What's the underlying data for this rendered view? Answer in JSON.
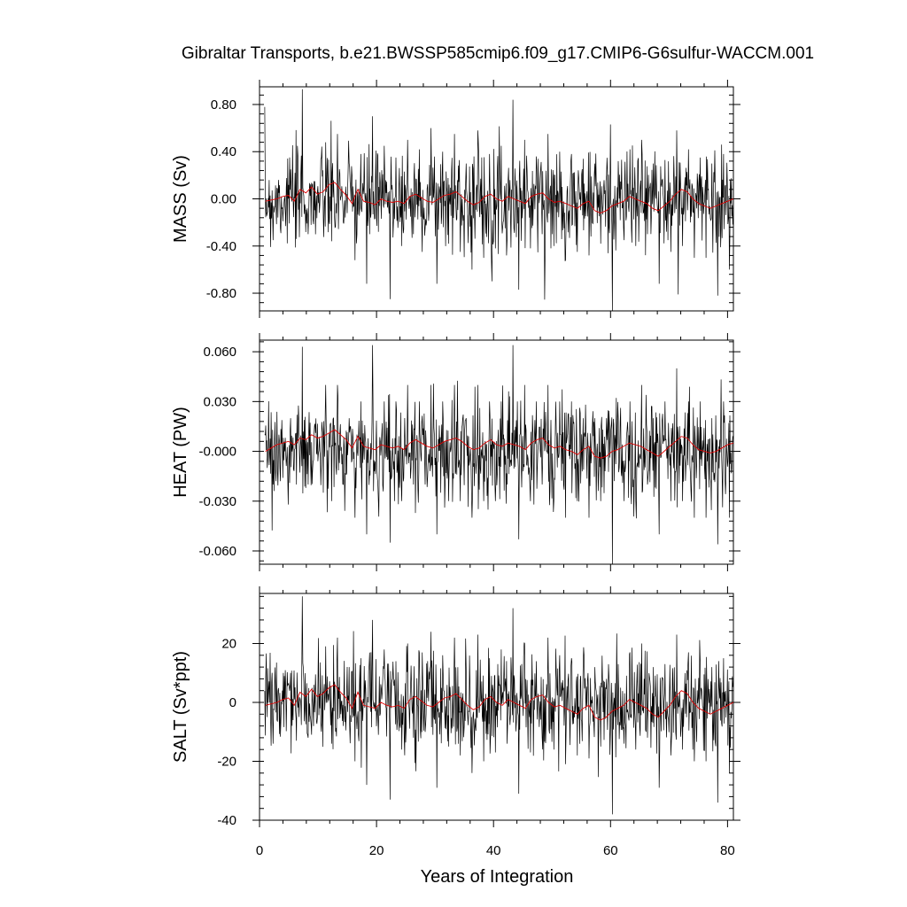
{
  "chart_data": {
    "type": "line",
    "title": "Gibraltar Transports, b.e21.BWSSP585cmip6.f09_g17.CMIP6-G6sulfur-WACCM.001",
    "xlabel": "Years of Integration",
    "xlim": [
      0,
      81
    ],
    "x_ticks": [
      0,
      20,
      40,
      60,
      80
    ],
    "x_tick_labels": [
      "0",
      "20",
      "40",
      "60",
      "80"
    ],
    "grid": false,
    "panels": [
      {
        "ylabel": "MASS (Sv)",
        "ylim": [
          -0.95,
          0.95
        ],
        "y_ticks": [
          -0.8,
          -0.4,
          0.0,
          0.4,
          0.8
        ],
        "y_tick_labels": [
          "-0.80",
          "-0.40",
          "0.00",
          "0.40",
          "0.80"
        ],
        "raw_std": 0.2,
        "raw_max": 0.93,
        "raw_min": -0.95,
        "series": [
          {
            "name": "",
            "color": "#000000",
            "values": [
              -0.12,
              -0.35,
              0.05,
              0.02,
              0.25,
              -0.34,
              0.93,
              -0.3,
              0.15,
              -0.05,
              0.48,
              -0.36,
              0.55,
              -0.2,
              0.3,
              -0.52,
              0.38,
              -0.72,
              0.7,
              -0.28,
              0.45,
              -0.85,
              0.35,
              -0.4,
              0.5,
              -0.3,
              0.42,
              -0.25,
              0.6,
              -0.72,
              0.4,
              -0.38,
              0.55,
              -0.45,
              0.3,
              -0.6,
              0.58,
              -0.5,
              0.38,
              -0.42,
              0.45,
              -0.35,
              0.84,
              -0.77,
              0.5,
              -0.42,
              0.36,
              -0.3,
              0.55,
              -0.4,
              0.4,
              -0.52,
              0.38,
              -0.45,
              0.34,
              -0.48,
              0.3,
              -0.38,
              0.2,
              -0.95,
              0.32,
              -0.35,
              0.42,
              -0.4,
              0.5,
              -0.3,
              0.3,
              -0.72,
              0.33,
              -0.45,
              0.58,
              -0.4,
              0.42,
              -0.5,
              0.35,
              -0.5,
              0.3,
              -0.82,
              0.38,
              -0.6,
              0.4,
              -0.15
            ]
          },
          {
            "name": "",
            "color": "#e00000",
            "values": [
              -0.02,
              -0.01,
              0.0,
              0.02,
              0.03,
              -0.02,
              0.08,
              0.05,
              0.1,
              0.04,
              0.06,
              0.12,
              0.14,
              0.08,
              0.03,
              -0.04,
              0.08,
              -0.02,
              -0.03,
              -0.05,
              0.0,
              -0.02,
              -0.03,
              -0.02,
              -0.04,
              0.02,
              0.04,
              0.01,
              -0.02,
              -0.03,
              0.0,
              0.03,
              0.04,
              0.06,
              0.02,
              -0.02,
              -0.05,
              -0.03,
              0.02,
              0.04,
              0.0,
              -0.02,
              0.02,
              0.0,
              -0.02,
              -0.04,
              0.02,
              0.04,
              0.05,
              0.0,
              -0.03,
              -0.02,
              -0.04,
              -0.06,
              -0.08,
              -0.04,
              -0.02,
              -0.1,
              -0.12,
              -0.1,
              -0.06,
              -0.04,
              -0.02,
              0.02,
              0.0,
              -0.02,
              -0.04,
              -0.08,
              -0.1,
              -0.06,
              -0.02,
              0.04,
              0.08,
              0.06,
              0.0,
              -0.04,
              -0.06,
              -0.08,
              -0.06,
              -0.04,
              -0.02,
              0.0
            ]
          }
        ]
      },
      {
        "ylabel": "HEAT (PW)",
        "ylim": [
          -0.068,
          0.067
        ],
        "y_ticks": [
          -0.06,
          -0.03,
          0.0,
          0.03,
          0.06
        ],
        "y_tick_labels": [
          "-0.060",
          "-0.030",
          "-0.000",
          "0.030",
          "0.060"
        ],
        "raw_std": 0.015,
        "raw_max": 0.064,
        "raw_min": -0.068,
        "series": [
          {
            "name": "",
            "color": "#000000",
            "values": [
              -0.01,
              -0.02,
              0.01,
              0.0,
              0.02,
              -0.02,
              0.063,
              -0.02,
              0.01,
              0.0,
              0.04,
              -0.03,
              0.04,
              -0.02,
              0.02,
              -0.04,
              0.03,
              -0.05,
              0.064,
              -0.03,
              0.03,
              -0.055,
              0.03,
              -0.03,
              0.04,
              -0.02,
              0.03,
              -0.02,
              0.04,
              -0.05,
              0.03,
              -0.03,
              0.04,
              -0.03,
              0.02,
              -0.04,
              0.04,
              -0.03,
              0.03,
              -0.03,
              0.03,
              -0.02,
              0.064,
              -0.053,
              0.04,
              -0.03,
              0.03,
              -0.02,
              0.04,
              -0.03,
              0.03,
              -0.04,
              0.03,
              -0.03,
              0.02,
              -0.04,
              0.02,
              -0.03,
              0.02,
              -0.068,
              0.02,
              -0.03,
              0.03,
              -0.03,
              0.04,
              -0.02,
              0.02,
              -0.05,
              0.03,
              -0.03,
              0.05,
              -0.03,
              0.03,
              -0.04,
              0.03,
              -0.04,
              0.02,
              -0.056,
              0.03,
              -0.04,
              0.03,
              -0.01
            ]
          },
          {
            "name": "",
            "color": "#e00000",
            "values": [
              0.0,
              0.002,
              0.004,
              0.005,
              0.006,
              0.004,
              0.008,
              0.007,
              0.01,
              0.008,
              0.009,
              0.011,
              0.013,
              0.01,
              0.007,
              0.002,
              0.009,
              0.003,
              0.002,
              0.001,
              0.004,
              0.003,
              0.002,
              0.003,
              0.001,
              0.005,
              0.007,
              0.005,
              0.003,
              0.002,
              0.004,
              0.006,
              0.007,
              0.008,
              0.006,
              0.003,
              0.001,
              0.002,
              0.005,
              0.007,
              0.004,
              0.003,
              0.005,
              0.004,
              0.003,
              0.001,
              0.005,
              0.007,
              0.008,
              0.004,
              0.002,
              0.003,
              0.001,
              0.0,
              -0.002,
              0.001,
              0.003,
              -0.003,
              -0.004,
              -0.003,
              0.0,
              0.001,
              0.003,
              0.005,
              0.004,
              0.003,
              0.001,
              -0.001,
              -0.003,
              0.0,
              0.003,
              0.006,
              0.009,
              0.008,
              0.004,
              0.001,
              0.0,
              -0.001,
              0.0,
              0.002,
              0.004,
              0.005
            ]
          }
        ]
      },
      {
        "ylabel": "SALT (Sv*ppt)",
        "ylim": [
          -40,
          37
        ],
        "y_ticks": [
          -40,
          -20,
          0,
          20
        ],
        "y_tick_labels": [
          "-40",
          "-20",
          "0",
          "20"
        ],
        "raw_std": 8,
        "raw_max": 36,
        "raw_min": -38,
        "series": [
          {
            "name": "",
            "color": "#000000",
            "values": [
              -5,
              -14,
              2,
              1,
              10,
              -13,
              36,
              -12,
              6,
              -2,
              19,
              -14,
              22,
              -8,
              12,
              -20,
              15,
              -28,
              28,
              -11,
              18,
              -33,
              14,
              -16,
              20,
              -12,
              17,
              -10,
              24,
              -29,
              16,
              -15,
              22,
              -18,
              12,
              -24,
              23,
              -20,
              15,
              -17,
              18,
              -14,
              32,
              -31,
              20,
              -17,
              14,
              -12,
              22,
              -16,
              16,
              -21,
              15,
              -18,
              13,
              -19,
              12,
              -15,
              8,
              -38,
              13,
              -14,
              17,
              -16,
              20,
              -12,
              12,
              -29,
              13,
              -18,
              23,
              -16,
              17,
              -20,
              14,
              -20,
              12,
              -34,
              15,
              -24,
              16,
              -6
            ]
          },
          {
            "name": "",
            "color": "#e00000",
            "values": [
              -1,
              -0.5,
              0,
              1,
              1.5,
              -1,
              3.5,
              2,
              4.5,
              2,
              3,
              5,
              6,
              3.5,
              1.5,
              -2,
              3.5,
              -1,
              -1.5,
              -2,
              0,
              -1,
              -1.5,
              -1,
              -2,
              1,
              2,
              0.5,
              -1,
              -1.5,
              0,
              1.5,
              2,
              3,
              1,
              -1,
              -2.5,
              -1.5,
              1,
              2,
              0,
              -1,
              1,
              0,
              -1,
              -2,
              1,
              2,
              2.5,
              0,
              -1.5,
              -1,
              -2,
              -3,
              -4,
              -2,
              -1,
              -5,
              -6,
              -5,
              -3,
              -2,
              -1,
              1,
              0,
              -1,
              -2,
              -4,
              -5,
              -3,
              -1,
              2,
              4,
              3,
              0,
              -2,
              -3,
              -4,
              -3,
              -2,
              -1,
              0
            ]
          }
        ]
      }
    ]
  }
}
